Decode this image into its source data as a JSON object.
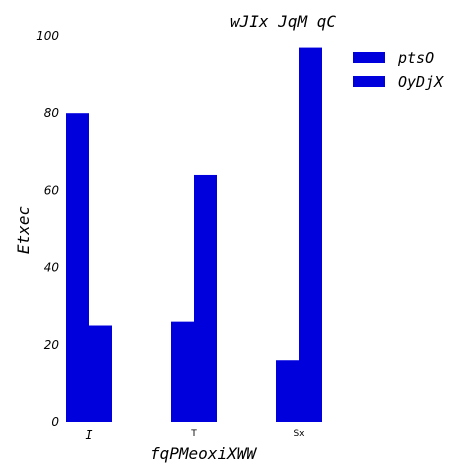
{
  "chart_data": {
    "type": "bar",
    "title": "wJIx JqM qC",
    "xlabel": "fqPMeoxiXWW",
    "ylabel": "Etxec",
    "categories": [
      "I",
      "T",
      "Sx"
    ],
    "series": [
      {
        "name": "ptsO",
        "values": [
          80,
          26,
          16
        ],
        "color": "#0000dd"
      },
      {
        "name": "OyDjX",
        "values": [
          25,
          64,
          97
        ],
        "color": "#0000dd"
      }
    ],
    "ylim": [
      0,
      100
    ],
    "yticks": [
      "0",
      "20",
      "40",
      "60",
      "80",
      "100"
    ],
    "grid": false,
    "legend_position": "top-right"
  }
}
